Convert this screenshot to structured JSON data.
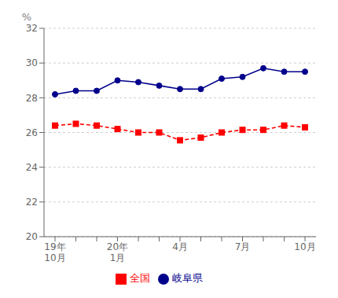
{
  "chart_data": {
    "type": "line",
    "ylabel": "%",
    "categories": [
      "19年\n10月",
      null,
      null,
      "20年\n1月",
      null,
      null,
      "4月",
      null,
      null,
      "7月",
      null,
      null,
      "10月"
    ],
    "series": [
      {
        "name": "岐阜県",
        "color": "#00008B",
        "marker": "circle",
        "line_style": "solid",
        "values": [
          28.2,
          28.4,
          28.4,
          29.0,
          28.9,
          28.7,
          28.5,
          28.5,
          29.1,
          29.2,
          29.7,
          29.5,
          29.5
        ]
      },
      {
        "name": "全国",
        "color": "#FF0000",
        "marker": "square",
        "line_style": "dashed",
        "values": [
          26.4,
          26.5,
          26.4,
          26.2,
          26.0,
          26.0,
          25.55,
          25.7,
          26.0,
          26.15,
          26.15,
          26.4,
          26.3
        ]
      }
    ],
    "ylim": [
      20,
      32
    ],
    "yticks": [
      20,
      22,
      24,
      26,
      28,
      30,
      32
    ],
    "grid": true,
    "legend": "bottom"
  }
}
